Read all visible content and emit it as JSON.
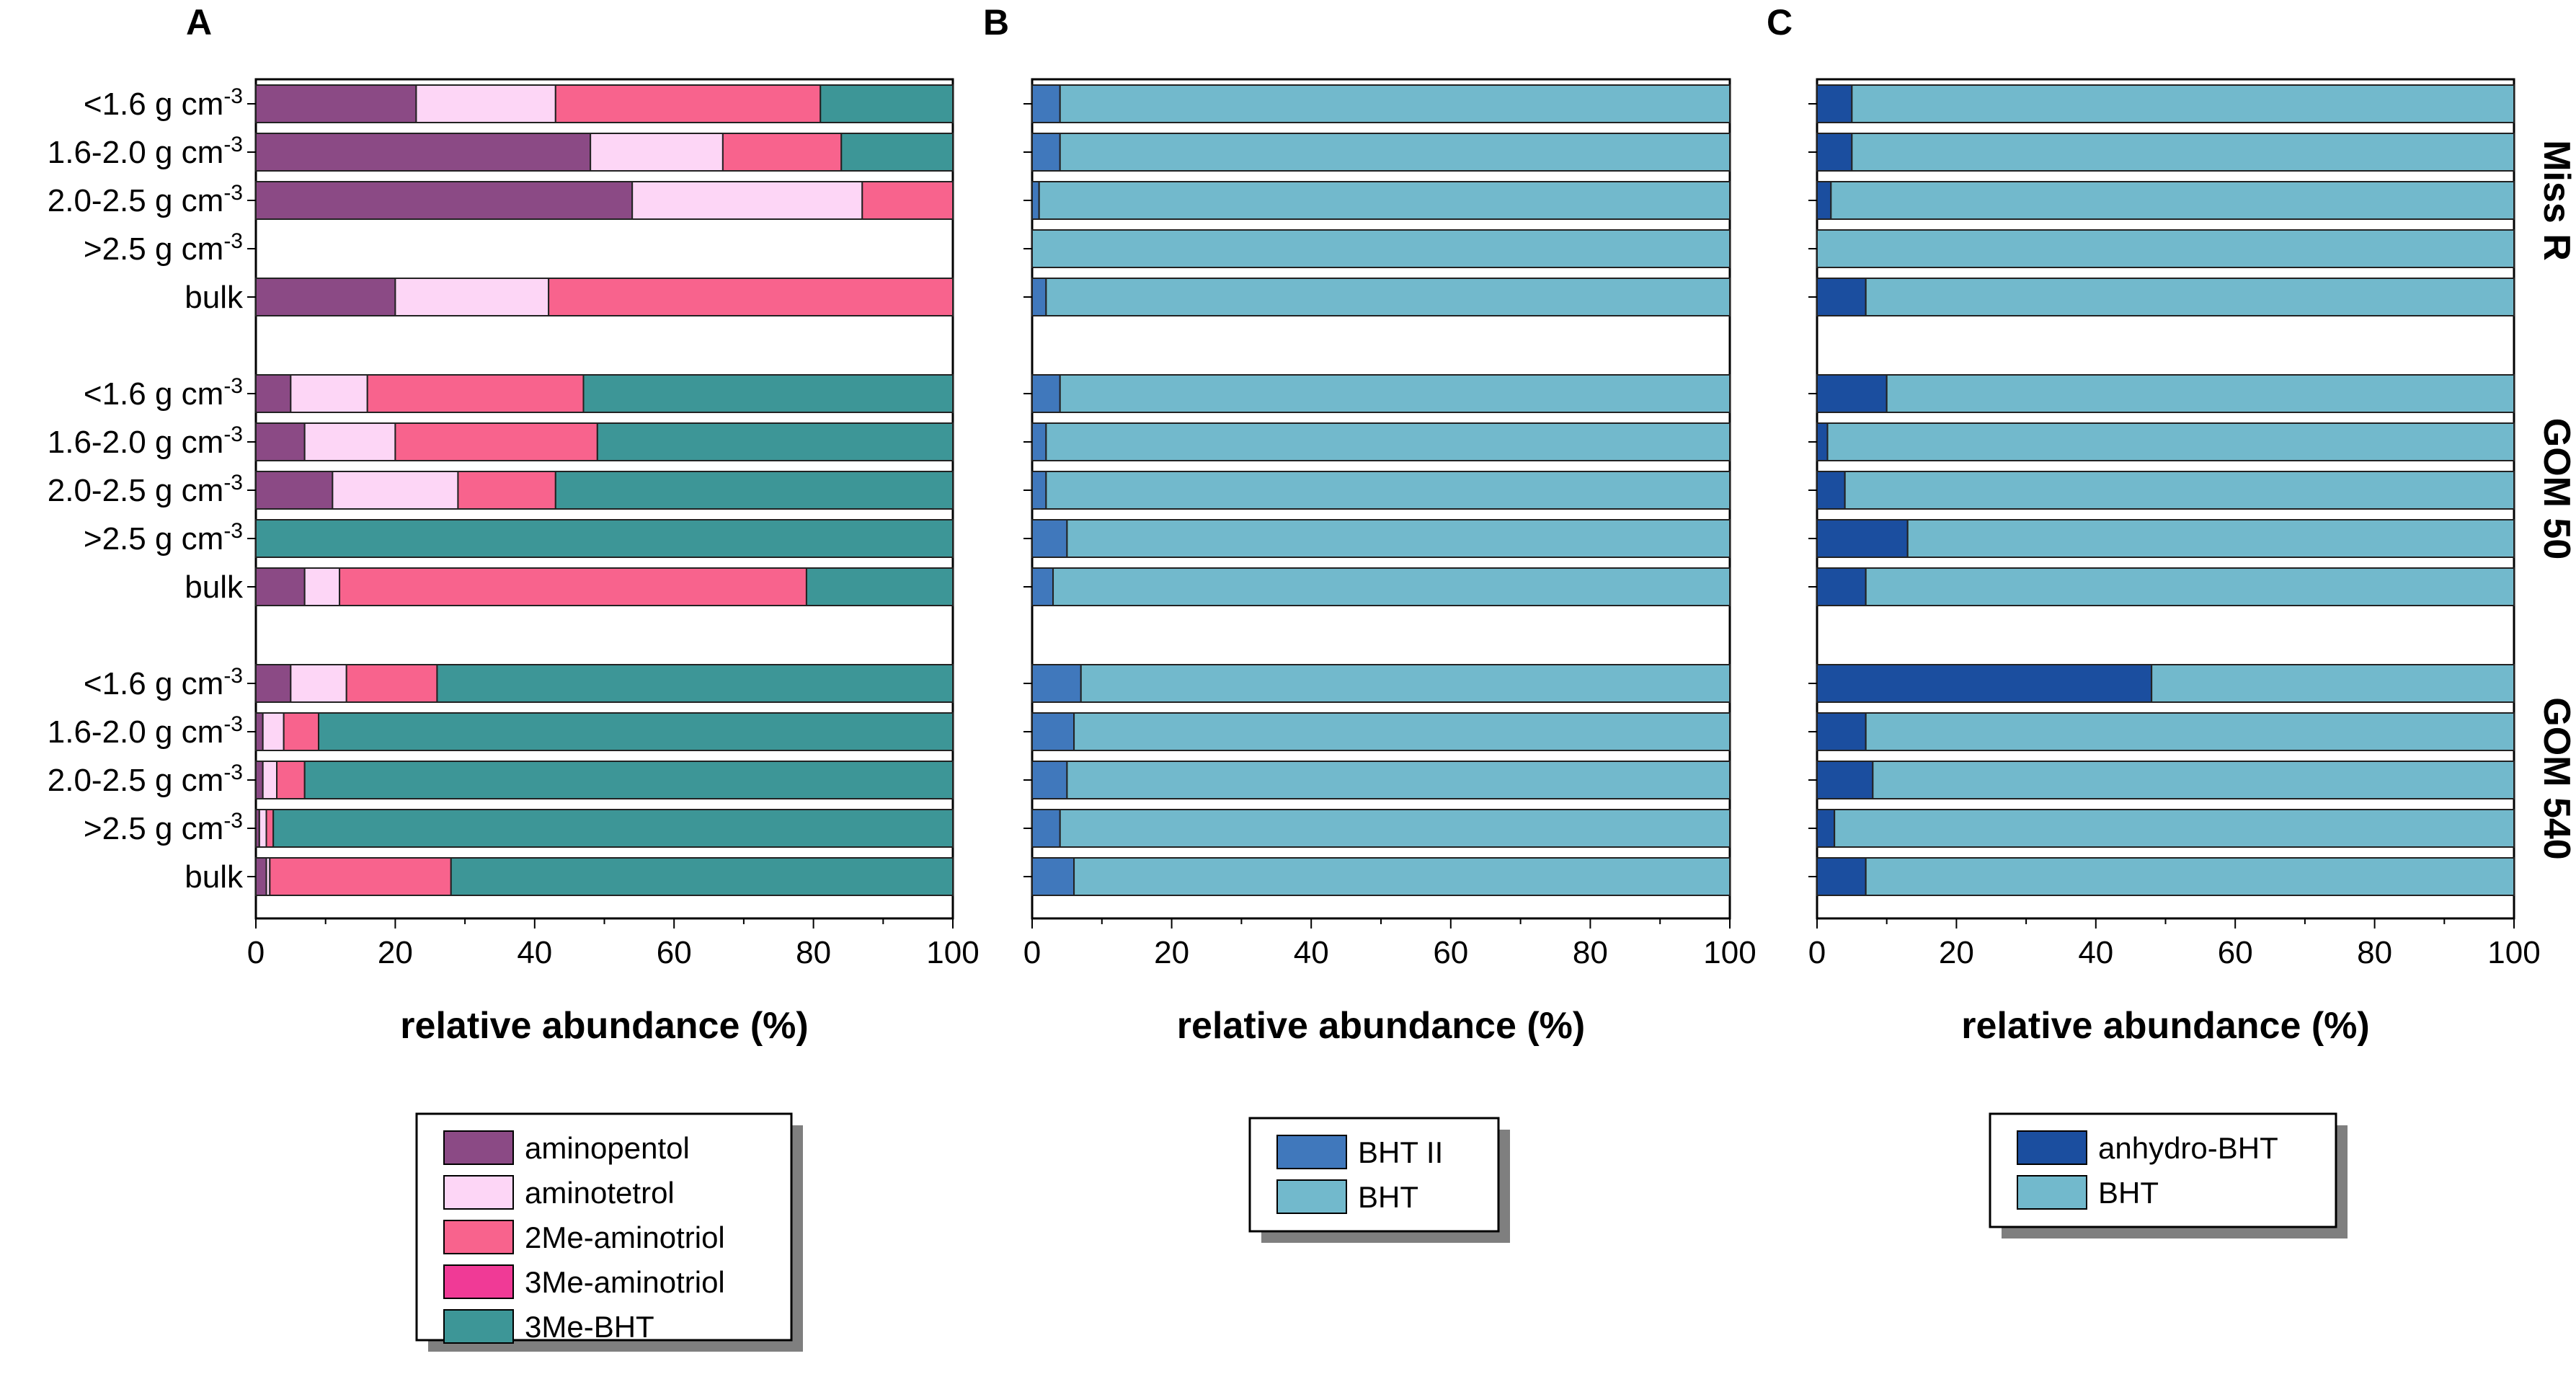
{
  "chart_data": [
    {
      "type": "stacked-bar-horizontal",
      "panel": "A",
      "xlabel": "relative abundance (%)",
      "xlim": [
        0,
        100
      ],
      "xticks": [
        "0",
        "20",
        "40",
        "60",
        "80",
        "100"
      ],
      "groups": [
        {
          "name": "Miss R",
          "rows": [
            {
              "label": "<1.6 g cm",
              "sup": "-3",
              "values": [
                23,
                20,
                38,
                0,
                19
              ]
            },
            {
              "label": "1.6-2.0 g cm",
              "sup": "-3",
              "values": [
                48,
                19,
                17,
                0,
                16
              ]
            },
            {
              "label": "2.0-2.5 g cm",
              "sup": "-3",
              "values": [
                54,
                33,
                13,
                0,
                0
              ]
            },
            {
              "label": ">2.5 g cm",
              "sup": "-3",
              "values": [
                0,
                0,
                0,
                0,
                0
              ]
            },
            {
              "label": "bulk",
              "sup": "",
              "values": [
                20,
                22,
                58,
                0,
                0
              ]
            }
          ]
        },
        {
          "name": "GOM 50",
          "rows": [
            {
              "label": "<1.6 g cm",
              "sup": "-3",
              "values": [
                5,
                11,
                31,
                0,
                53
              ]
            },
            {
              "label": "1.6-2.0 g cm",
              "sup": "-3",
              "values": [
                7,
                13,
                29,
                0,
                51
              ]
            },
            {
              "label": "2.0-2.5 g cm",
              "sup": "-3",
              "values": [
                11,
                18,
                14,
                0,
                57
              ]
            },
            {
              "label": ">2.5 g cm",
              "sup": "-3",
              "values": [
                0,
                0,
                0,
                0,
                100
              ]
            },
            {
              "label": "bulk",
              "sup": "",
              "values": [
                7,
                5,
                67,
                0,
                21
              ]
            }
          ]
        },
        {
          "name": "GOM 540",
          "rows": [
            {
              "label": "<1.6 g cm",
              "sup": "-3",
              "values": [
                5,
                8,
                13,
                0,
                74
              ]
            },
            {
              "label": "1.6-2.0 g cm",
              "sup": "-3",
              "values": [
                1,
                3,
                5,
                0,
                91
              ]
            },
            {
              "label": "2.0-2.5 g cm",
              "sup": "-3",
              "values": [
                1,
                2,
                4,
                0,
                93
              ]
            },
            {
              "label": ">2.5 g cm",
              "sup": "-3",
              "values": [
                0.5,
                1,
                1,
                0,
                97.5
              ]
            },
            {
              "label": "bulk",
              "sup": "",
              "values": [
                1.5,
                0.5,
                26,
                0,
                72
              ]
            }
          ]
        }
      ],
      "series": [
        {
          "name": "aminopentol",
          "color": "#8b4a85"
        },
        {
          "name": "aminotetrol",
          "color": "#fdd6f6"
        },
        {
          "name": "2Me-aminotriol",
          "color": "#f8638d"
        },
        {
          "name": "3Me-aminotriol",
          "color": "#f03a96"
        },
        {
          "name": "3Me-BHT",
          "color": "#3d9697"
        }
      ]
    },
    {
      "type": "stacked-bar-horizontal",
      "panel": "B",
      "xlabel": "relative abundance (%)",
      "xlim": [
        0,
        100
      ],
      "xticks": [
        "0",
        "20",
        "40",
        "60",
        "80",
        "100"
      ],
      "groups": [
        {
          "name": "Miss R",
          "rows": [
            {
              "values": [
                4,
                96
              ]
            },
            {
              "values": [
                4,
                96
              ]
            },
            {
              "values": [
                1,
                99
              ]
            },
            {
              "values": [
                0,
                100
              ]
            },
            {
              "values": [
                2,
                98
              ]
            }
          ]
        },
        {
          "name": "GOM 50",
          "rows": [
            {
              "values": [
                4,
                96
              ]
            },
            {
              "values": [
                2,
                98
              ]
            },
            {
              "values": [
                2,
                98
              ]
            },
            {
              "values": [
                5,
                95
              ]
            },
            {
              "values": [
                3,
                97
              ]
            }
          ]
        },
        {
          "name": "GOM 540",
          "rows": [
            {
              "values": [
                7,
                93
              ]
            },
            {
              "values": [
                6,
                94
              ]
            },
            {
              "values": [
                5,
                95
              ]
            },
            {
              "values": [
                4,
                96
              ]
            },
            {
              "values": [
                6,
                94
              ]
            }
          ]
        }
      ],
      "series": [
        {
          "name": "BHT II",
          "color": "#4078bc"
        },
        {
          "name": "BHT",
          "color": "#72b9cc"
        }
      ]
    },
    {
      "type": "stacked-bar-horizontal",
      "panel": "C",
      "xlabel": "relative abundance (%)",
      "xlim": [
        0,
        100
      ],
      "xticks": [
        "0",
        "20",
        "40",
        "60",
        "80",
        "100"
      ],
      "groups": [
        {
          "name": "Miss R",
          "rows": [
            {
              "values": [
                5,
                95
              ]
            },
            {
              "values": [
                5,
                95
              ]
            },
            {
              "values": [
                2,
                98
              ]
            },
            {
              "values": [
                0,
                100
              ]
            },
            {
              "values": [
                7,
                93
              ]
            }
          ]
        },
        {
          "name": "GOM 50",
          "rows": [
            {
              "values": [
                10,
                90
              ]
            },
            {
              "values": [
                1.5,
                98.5
              ]
            },
            {
              "values": [
                4,
                96
              ]
            },
            {
              "values": [
                13,
                87
              ]
            },
            {
              "values": [
                7,
                93
              ]
            }
          ]
        },
        {
          "name": "GOM 540",
          "rows": [
            {
              "values": [
                48,
                52
              ]
            },
            {
              "values": [
                7,
                93
              ]
            },
            {
              "values": [
                8,
                92
              ]
            },
            {
              "values": [
                2.5,
                97.5
              ]
            },
            {
              "values": [
                7,
                93
              ]
            }
          ]
        }
      ],
      "series": [
        {
          "name": "anhydro-BHT",
          "color": "#1b4e9f"
        },
        {
          "name": "BHT",
          "color": "#72b9cc"
        }
      ]
    }
  ]
}
